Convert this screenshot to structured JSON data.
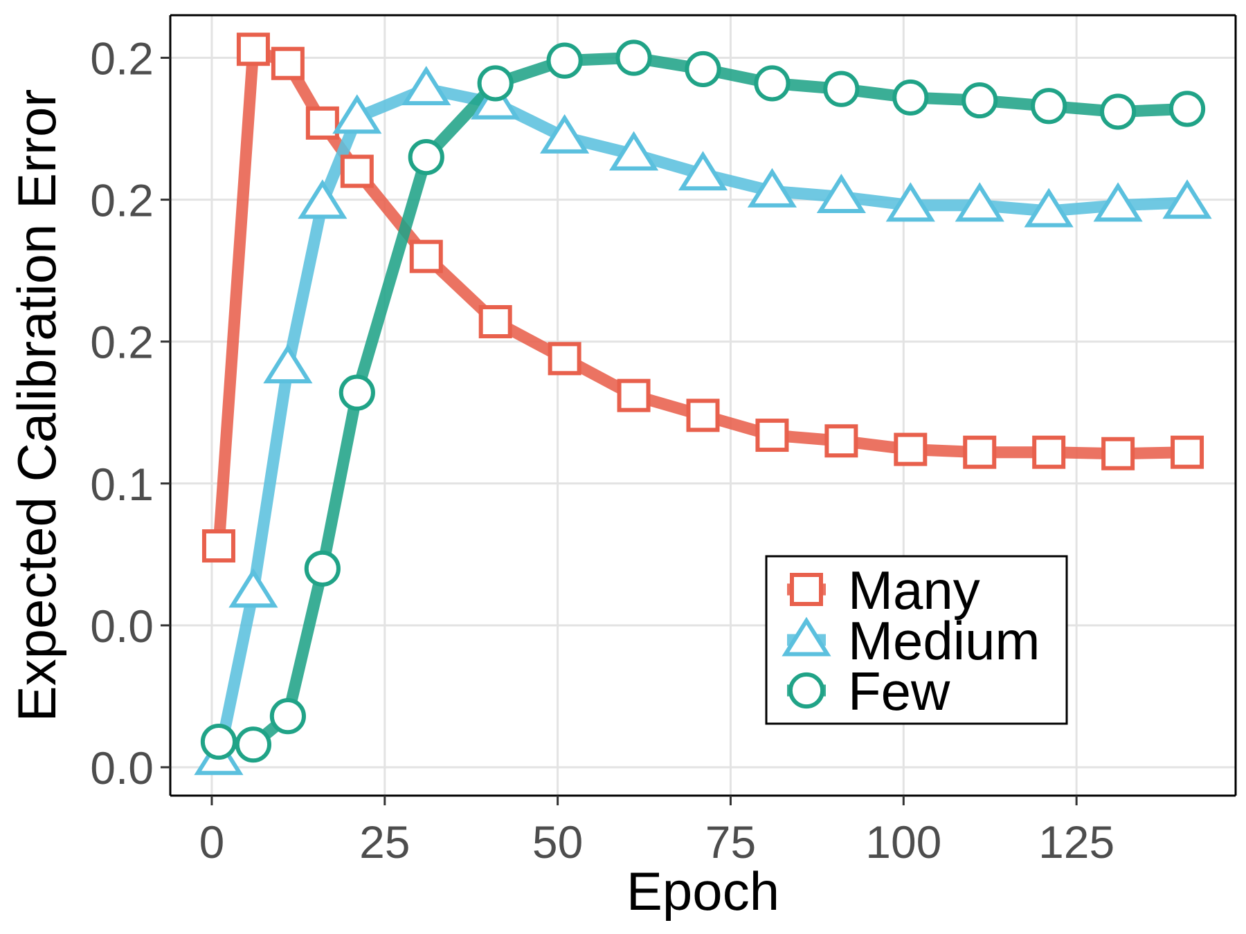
{
  "chart_data": {
    "type": "line",
    "title": "",
    "xlabel": "Epoch",
    "ylabel": "Expected Calibration Error",
    "xlim": [
      -6,
      148
    ],
    "ylim": [
      -0.01,
      0.265
    ],
    "x_ticks": [
      0,
      25,
      50,
      75,
      100,
      125
    ],
    "x_tick_labels": [
      "0",
      "25",
      "50",
      "75",
      "100",
      "125"
    ],
    "y_ticks": [
      0.0,
      0.05,
      0.1,
      0.15,
      0.2,
      0.25
    ],
    "y_tick_labels": [
      "0.0",
      "0.0",
      "0.1",
      "0.2",
      "0.2",
      "0.2"
    ],
    "grid": true,
    "legend": {
      "position": "bottom-right"
    },
    "series": [
      {
        "name": "Many",
        "color": "#e8604c",
        "marker": "square",
        "x": [
          1,
          6,
          11,
          16,
          21,
          31,
          41,
          51,
          61,
          71,
          81,
          91,
          101,
          111,
          121,
          131,
          141
        ],
        "y": [
          0.078,
          0.253,
          0.248,
          0.227,
          0.21,
          0.18,
          0.157,
          0.144,
          0.131,
          0.124,
          0.117,
          0.115,
          0.112,
          0.111,
          0.111,
          0.1105,
          0.111
        ]
      },
      {
        "name": "Medium",
        "color": "#5bc0de",
        "marker": "triangle",
        "x": [
          1,
          6,
          11,
          16,
          21,
          31,
          41,
          51,
          61,
          71,
          81,
          91,
          101,
          111,
          121,
          131,
          141
        ],
        "y": [
          0.003,
          0.062,
          0.141,
          0.199,
          0.229,
          0.239,
          0.234,
          0.222,
          0.216,
          0.209,
          0.203,
          0.201,
          0.198,
          0.198,
          0.196,
          0.198,
          0.199
        ]
      },
      {
        "name": "Few",
        "color": "#20a387",
        "marker": "circle",
        "x": [
          1,
          6,
          11,
          16,
          21,
          31,
          41,
          51,
          61,
          71,
          81,
          91,
          101,
          111,
          121,
          131,
          141
        ],
        "y": [
          0.009,
          0.008,
          0.018,
          0.07,
          0.132,
          0.215,
          0.241,
          0.249,
          0.25,
          0.246,
          0.241,
          0.239,
          0.236,
          0.235,
          0.233,
          0.231,
          0.232
        ]
      }
    ]
  }
}
